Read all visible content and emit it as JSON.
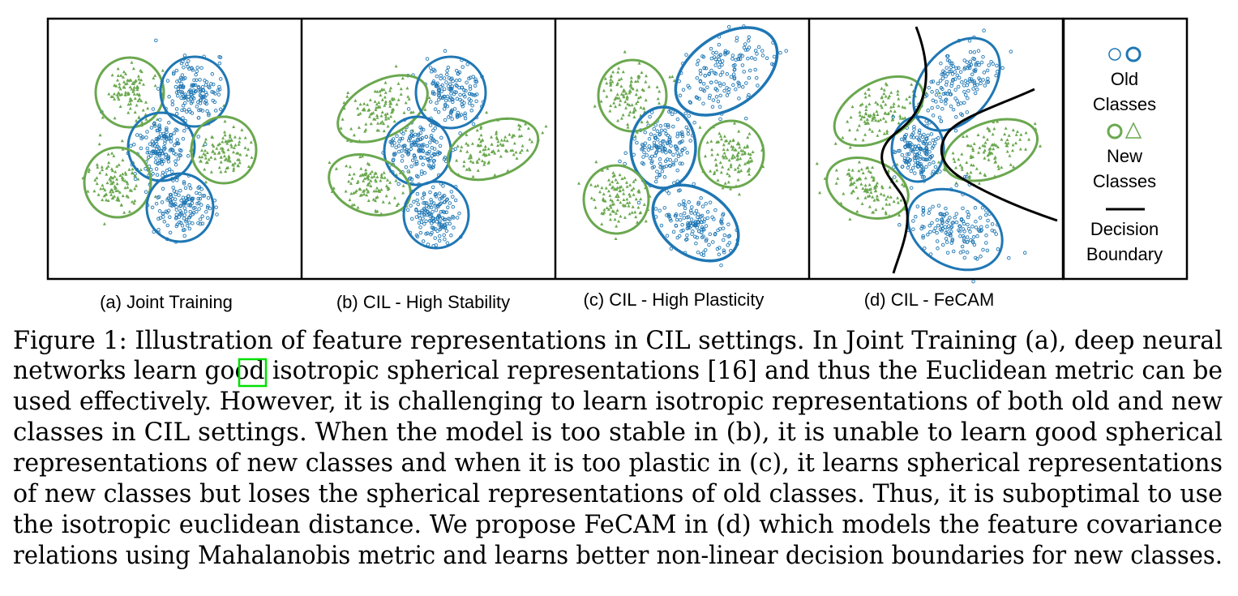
{
  "figure": {
    "panels": [
      {
        "id": "a",
        "label": "(a) Joint Training"
      },
      {
        "id": "b",
        "label": "(b) CIL - High Stability"
      },
      {
        "id": "c",
        "label": "(c) CIL - High Plasticity"
      },
      {
        "id": "d",
        "label": "(d) CIL - FeCAM"
      }
    ],
    "legend": {
      "old_classes_line1": "Old",
      "old_classes_line2": "Classes",
      "new_classes_line1": "New",
      "new_classes_line2": "Classes",
      "boundary_line1": "Decision",
      "boundary_line2": "Boundary"
    },
    "colors": {
      "old_class": "#1f77b4",
      "new_class": "#6aa84f",
      "boundary": "#000000"
    }
  },
  "caption": {
    "lines": [
      {
        "pre": "Figure 1: Illustration of feature representations in CIL settings. In Joint Training (a), deep neural"
      },
      {
        "pre": "networks learn good isotropic spherical representations [",
        "ref": "16",
        "post": "] and thus the Euclidean metric can be"
      },
      {
        "pre": "used effectively. However, it is challenging to learn isotropic representations of both old and new"
      },
      {
        "pre": "classes in CIL settings. When the model is too stable in (b), it is unable to learn good spherical"
      },
      {
        "pre": "representations of new classes and when it is too plastic in (c), it learns spherical representations"
      },
      {
        "pre": "of new classes but loses the spherical representations of old classes. Thus, it is suboptimal to use"
      },
      {
        "pre": "the isotropic euclidean distance. We propose FeCAM in (d) which models the feature covariance"
      },
      {
        "pre": "relations using Mahalanobis metric and learns better non-linear decision boundaries for new classes."
      }
    ]
  }
}
